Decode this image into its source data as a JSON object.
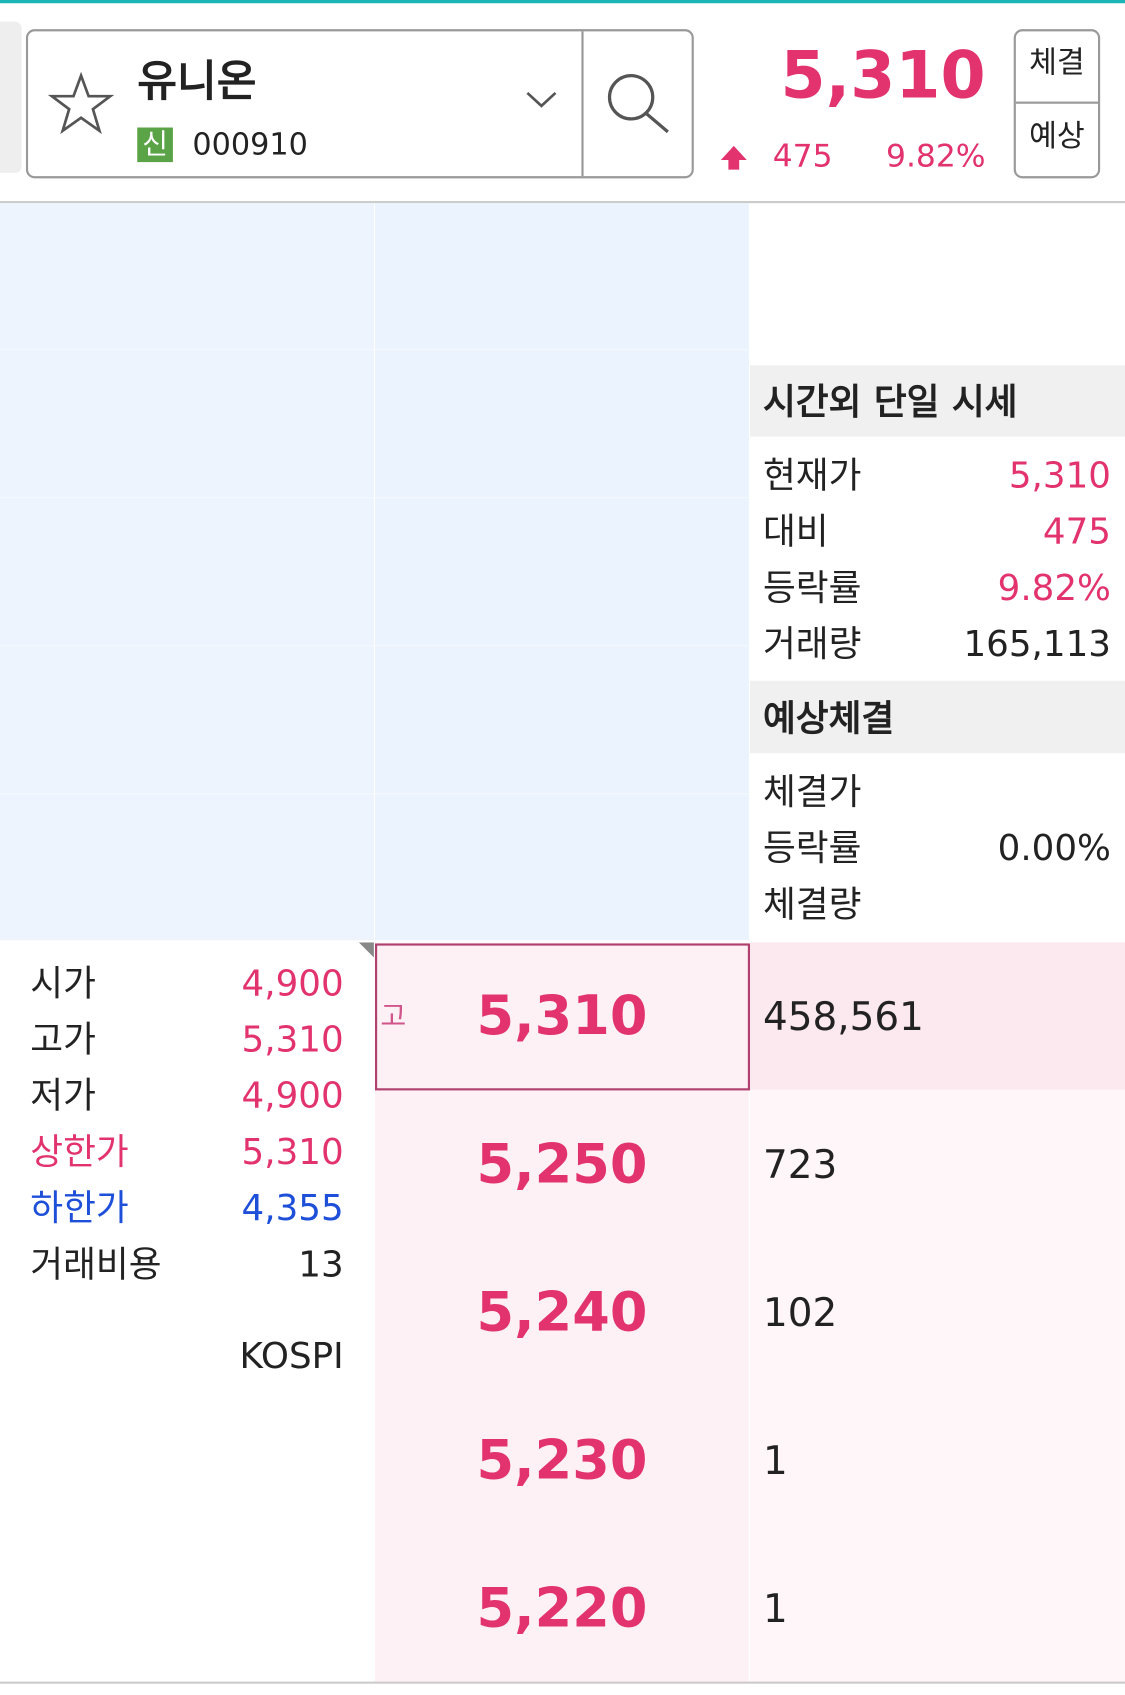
{
  "header": {
    "stock_name": "유니온",
    "badge": "신",
    "code": "000910",
    "price": "5,310",
    "change": "475",
    "rate": "9.82%",
    "buttons": [
      "체결",
      "예상"
    ]
  },
  "after_hours": {
    "title": "시간외 단일 시세",
    "rows": [
      {
        "label": "현재가",
        "value": "5,310"
      },
      {
        "label": "대비",
        "value": "475"
      },
      {
        "label": "등락률",
        "value": "9.82%"
      },
      {
        "label": "거래량",
        "value": "165,113"
      }
    ]
  },
  "expected": {
    "title": "예상체결",
    "rows": [
      {
        "label": "체결가"
      },
      {
        "label": "등락률",
        "value": "0.00%"
      },
      {
        "label": "체결량"
      }
    ]
  },
  "stats": {
    "rows": [
      {
        "label": "시가",
        "value": "4,900"
      },
      {
        "label": "고가",
        "value": "5,310"
      },
      {
        "label": "저가",
        "value": "4,900"
      },
      {
        "label": "상한가",
        "value": "5,310"
      },
      {
        "label": "하한가",
        "value": "4,355"
      },
      {
        "label": "거래비용",
        "value": "13"
      }
    ],
    "market": "KOSPI"
  },
  "order_book": {
    "high_mark": "고",
    "rows": [
      {
        "price": "5,310",
        "volume": "458,561"
      },
      {
        "price": "5,250",
        "volume": "723"
      },
      {
        "price": "5,240",
        "volume": "102"
      },
      {
        "price": "5,230",
        "volume": "1"
      },
      {
        "price": "5,220",
        "volume": "1"
      }
    ]
  }
}
